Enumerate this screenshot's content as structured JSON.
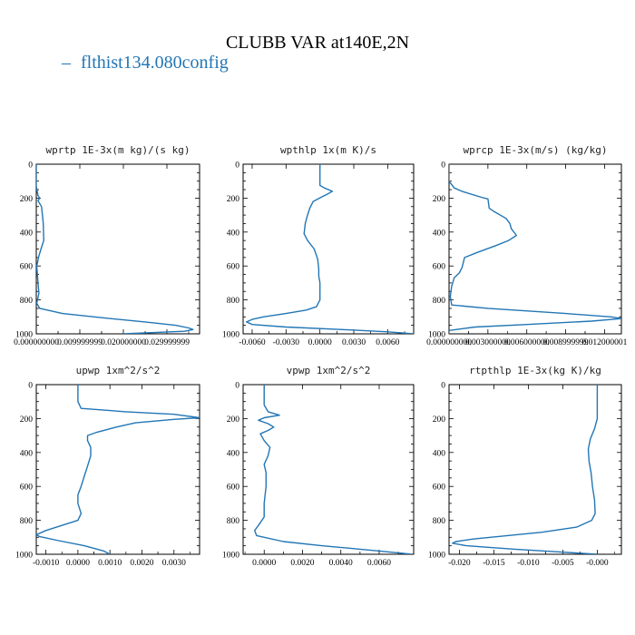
{
  "title": "CLUBB VAR at140E,2N",
  "legend": {
    "label": "flthist134.080config",
    "color": "#2276b5"
  },
  "chart_data": [
    {
      "type": "line",
      "title": "wprtp  1E-3x(m kg)/(s kg)",
      "xlim": [
        0,
        0.0375
      ],
      "ylim": [
        1000,
        0
      ],
      "xticks": [
        {
          "v": 0.0,
          "label": "0.000000000"
        },
        {
          "v": 0.01,
          "label": "0.009999999"
        },
        {
          "v": 0.02,
          "label": "0.020000000"
        },
        {
          "v": 0.03,
          "label": "0.029999999"
        }
      ],
      "yticks": [
        0,
        200,
        400,
        600,
        800,
        1000
      ],
      "series": [
        {
          "color": "#2276b5",
          "points": [
            [
              0,
              0
            ],
            [
              0,
              130
            ],
            [
              0.0004,
              185
            ],
            [
              0.0008,
              200
            ],
            [
              0.0004,
              215
            ],
            [
              0.0012,
              250
            ],
            [
              0.0016,
              350
            ],
            [
              0.0017,
              450
            ],
            [
              0.0012,
              490
            ],
            [
              0.0006,
              540
            ],
            [
              0.0001,
              600
            ],
            [
              0.0004,
              700
            ],
            [
              0.0006,
              760
            ],
            [
              0.0001,
              820
            ],
            [
              0.0008,
              850
            ],
            [
              0.006,
              880
            ],
            [
              0.015,
              905
            ],
            [
              0.025,
              930
            ],
            [
              0.032,
              950
            ],
            [
              0.035,
              965
            ],
            [
              0.036,
              975
            ],
            [
              0.034,
              985
            ],
            [
              0.02,
              1000
            ]
          ]
        }
      ]
    },
    {
      "type": "line",
      "title": "wpthlp  1x(m K)/s",
      "xlim": [
        -0.0068,
        0.0083
      ],
      "ylim": [
        1000,
        0
      ],
      "xticks": [
        {
          "v": -0.006,
          "label": "-0.0060"
        },
        {
          "v": -0.003,
          "label": "-0.0030"
        },
        {
          "v": 0.0,
          "label": "0.0000"
        },
        {
          "v": 0.003,
          "label": "0.0030"
        },
        {
          "v": 0.006,
          "label": "0.0060"
        }
      ],
      "yticks": [
        0,
        200,
        400,
        600,
        800,
        1000
      ],
      "series": [
        {
          "color": "#2276b5",
          "points": [
            [
              0,
              0
            ],
            [
              0,
              125
            ],
            [
              0.0004,
              140
            ],
            [
              0.0011,
              160
            ],
            [
              0.0007,
              175
            ],
            [
              0.0001,
              195
            ],
            [
              -0.0006,
              220
            ],
            [
              -0.0009,
              260
            ],
            [
              -0.0011,
              300
            ],
            [
              -0.0013,
              350
            ],
            [
              -0.0014,
              410
            ],
            [
              -0.0011,
              450
            ],
            [
              -0.0005,
              500
            ],
            [
              -0.0002,
              560
            ],
            [
              -0.0001,
              620
            ],
            [
              -0.0001,
              660
            ],
            [
              0,
              700
            ],
            [
              0,
              750
            ],
            [
              0,
              800
            ],
            [
              -0.0003,
              840
            ],
            [
              -0.0012,
              860
            ],
            [
              -0.003,
              880
            ],
            [
              -0.005,
              900
            ],
            [
              -0.006,
              915
            ],
            [
              -0.0065,
              930
            ],
            [
              -0.006,
              945
            ],
            [
              -0.003,
              960
            ],
            [
              0.002,
              975
            ],
            [
              0.006,
              988
            ],
            [
              0.0083,
              1000
            ]
          ]
        }
      ]
    },
    {
      "type": "line",
      "title": "wprcp  1E-3x(m/s) (kg/kg)",
      "xlim": [
        0,
        0.0133
      ],
      "ylim": [
        1000,
        0
      ],
      "xticks": [
        {
          "v": 0.0,
          "label": "0.000000000"
        },
        {
          "v": 0.003,
          "label": "0.003000000"
        },
        {
          "v": 0.006,
          "label": "0.006000000"
        },
        {
          "v": 0.009,
          "label": "0.008999999"
        },
        {
          "v": 0.012,
          "label": "0.012000001"
        }
      ],
      "yticks": [
        0,
        200,
        400,
        600,
        800,
        1000
      ],
      "series": [
        {
          "color": "#2276b5",
          "points": [
            [
              0,
              0
            ],
            [
              0,
              100
            ],
            [
              0.0004,
              140
            ],
            [
              0.001,
              160
            ],
            [
              0.0025,
              195
            ],
            [
              0.003,
              205
            ],
            [
              0.0031,
              260
            ],
            [
              0.0035,
              280
            ],
            [
              0.0044,
              320
            ],
            [
              0.0047,
              350
            ],
            [
              0.0048,
              380
            ],
            [
              0.0052,
              420
            ],
            [
              0.0046,
              450
            ],
            [
              0.0036,
              480
            ],
            [
              0.0022,
              520
            ],
            [
              0.0012,
              550
            ],
            [
              0.001,
              610
            ],
            [
              0.0008,
              640
            ],
            [
              0.0004,
              670
            ],
            [
              0.0002,
              720
            ],
            [
              0.0001,
              780
            ],
            [
              0.0002,
              830
            ],
            [
              0.003,
              850
            ],
            [
              0.009,
              880
            ],
            [
              0.0125,
              900
            ],
            [
              0.0133,
              910
            ],
            [
              0.011,
              925
            ],
            [
              0.006,
              945
            ],
            [
              0.002,
              960
            ],
            [
              0,
              980
            ],
            [
              0,
              1000
            ]
          ]
        }
      ]
    },
    {
      "type": "line",
      "title": "upwp  1xm^2/s^2",
      "xlim": [
        -0.0013,
        0.0038
      ],
      "ylim": [
        1000,
        0
      ],
      "xticks": [
        {
          "v": -0.001,
          "label": "-0.0010"
        },
        {
          "v": 0.0,
          "label": "0.0000"
        },
        {
          "v": 0.001,
          "label": "0.0010"
        },
        {
          "v": 0.002,
          "label": "0.0020"
        },
        {
          "v": 0.003,
          "label": "0.0030"
        }
      ],
      "yticks": [
        0,
        200,
        400,
        600,
        800,
        1000
      ],
      "series": [
        {
          "color": "#2276b5",
          "points": [
            [
              0,
              0
            ],
            [
              0,
              100
            ],
            [
              0.0001,
              140
            ],
            [
              0.0015,
              160
            ],
            [
              0.003,
              175
            ],
            [
              0.0038,
              195
            ],
            [
              0.003,
              205
            ],
            [
              0.0018,
              225
            ],
            [
              0.0012,
              250
            ],
            [
              0.0006,
              280
            ],
            [
              0.0003,
              300
            ],
            [
              0.0003,
              330
            ],
            [
              0.0004,
              370
            ],
            [
              0.0004,
              420
            ],
            [
              0.0003,
              480
            ],
            [
              0.0002,
              540
            ],
            [
              0.0001,
              600
            ],
            [
              0,
              650
            ],
            [
              0,
              700
            ],
            [
              0.0001,
              760
            ],
            [
              0,
              800
            ],
            [
              -0.0005,
              830
            ],
            [
              -0.001,
              860
            ],
            [
              -0.0013,
              885
            ],
            [
              -0.0012,
              895
            ],
            [
              -0.0006,
              920
            ],
            [
              0.0002,
              950
            ],
            [
              0.0008,
              980
            ],
            [
              0.001,
              1000
            ]
          ]
        }
      ]
    },
    {
      "type": "line",
      "title": "vpwp  1xm^2/s^2",
      "xlim": [
        -0.0011,
        0.0078
      ],
      "ylim": [
        1000,
        0
      ],
      "xticks": [
        {
          "v": 0.0,
          "label": "0.0000"
        },
        {
          "v": 0.002,
          "label": "0.0020"
        },
        {
          "v": 0.004,
          "label": "0.0040"
        },
        {
          "v": 0.006,
          "label": "0.0060"
        }
      ],
      "yticks": [
        0,
        200,
        400,
        600,
        800,
        1000
      ],
      "series": [
        {
          "color": "#2276b5",
          "points": [
            [
              0,
              0
            ],
            [
              0,
              120
            ],
            [
              0.0002,
              160
            ],
            [
              0.0008,
              180
            ],
            [
              0,
              195
            ],
            [
              -0.0003,
              210
            ],
            [
              0.0002,
              230
            ],
            [
              0.0005,
              250
            ],
            [
              0.0002,
              270
            ],
            [
              -0.0002,
              290
            ],
            [
              0,
              330
            ],
            [
              0.0003,
              370
            ],
            [
              0.0002,
              420
            ],
            [
              0,
              470
            ],
            [
              0.0001,
              520
            ],
            [
              0.0001,
              600
            ],
            [
              0,
              700
            ],
            [
              0,
              780
            ],
            [
              -0.0003,
              830
            ],
            [
              -0.0005,
              860
            ],
            [
              -0.0004,
              890
            ],
            [
              0.001,
              925
            ],
            [
              0.003,
              950
            ],
            [
              0.005,
              970
            ],
            [
              0.0068,
              990
            ],
            [
              0.0077,
              1000
            ]
          ]
        }
      ]
    },
    {
      "type": "line",
      "title": "rtpthlp  1E-3x(kg K)/kg",
      "xlim": [
        -0.0215,
        0.0035
      ],
      "ylim": [
        1000,
        0
      ],
      "xticks": [
        {
          "v": -0.02,
          "label": "-0.020"
        },
        {
          "v": -0.015,
          "label": "-0.015"
        },
        {
          "v": -0.01,
          "label": "-0.010"
        },
        {
          "v": -0.005,
          "label": "-0.005"
        },
        {
          "v": 0.0,
          "label": "-0.000"
        }
      ],
      "yticks": [
        0,
        200,
        400,
        600,
        800,
        1000
      ],
      "series": [
        {
          "color": "#2276b5",
          "points": [
            [
              0,
              0
            ],
            [
              0,
              100
            ],
            [
              0,
              200
            ],
            [
              -0.0004,
              260
            ],
            [
              -0.001,
              320
            ],
            [
              -0.0013,
              380
            ],
            [
              -0.0012,
              450
            ],
            [
              -0.0009,
              520
            ],
            [
              -0.0007,
              600
            ],
            [
              -0.0004,
              680
            ],
            [
              -0.0003,
              760
            ],
            [
              -0.0008,
              800
            ],
            [
              -0.003,
              840
            ],
            [
              -0.008,
              870
            ],
            [
              -0.013,
              890
            ],
            [
              -0.018,
              910
            ],
            [
              -0.0205,
              925
            ],
            [
              -0.021,
              935
            ],
            [
              -0.019,
              950
            ],
            [
              -0.012,
              970
            ],
            [
              -0.006,
              985
            ],
            [
              0,
              1000
            ]
          ]
        }
      ]
    }
  ]
}
